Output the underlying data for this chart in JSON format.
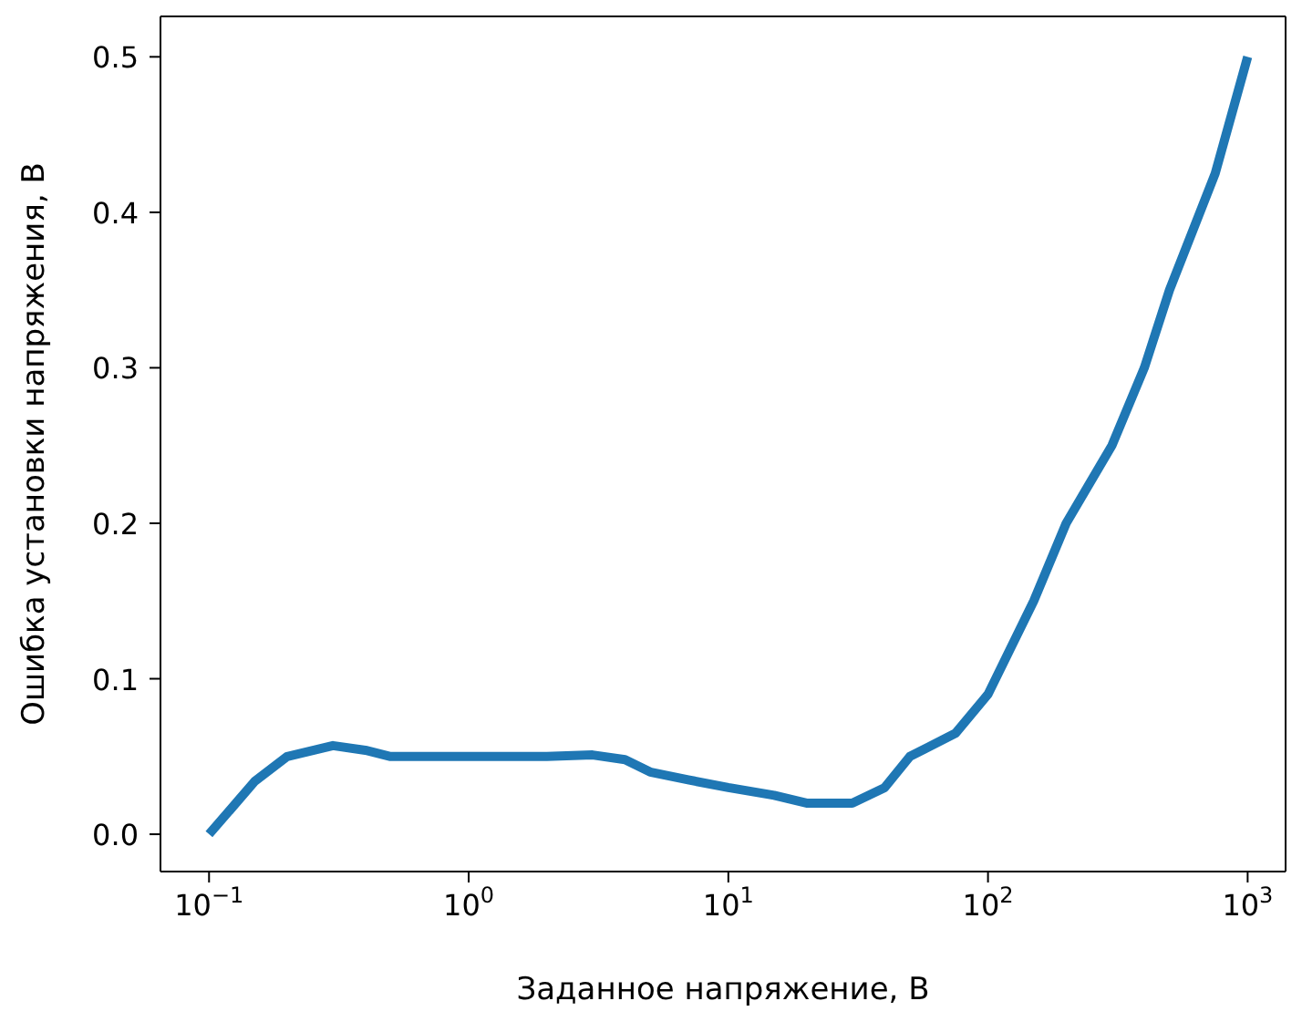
{
  "chart_data": {
    "type": "line",
    "xlabel": "Заданное напряжение, В",
    "ylabel": "Ошибка установки напряжения, В",
    "log": "x",
    "x": [
      0.1,
      0.15,
      0.2,
      0.3,
      0.4,
      0.5,
      1,
      2,
      3,
      4,
      5,
      7,
      10,
      15,
      20,
      30,
      40,
      50,
      75,
      100,
      150,
      200,
      300,
      400,
      500,
      750,
      1000
    ],
    "series": [
      {
        "color": "#1f77b4",
        "values": [
          0,
          0.034,
          0.05,
          0.057,
          0.054,
          0.05,
          0.05,
          0.05,
          0.051,
          0.048,
          0.04,
          0.035,
          0.03,
          0.025,
          0.02,
          0.02,
          0.03,
          0.05,
          0.065,
          0.09,
          0.15,
          0.2,
          0.25,
          0.3,
          0.35,
          0.425,
          0.5
        ]
      }
    ],
    "xlim": [
      0.065,
      1400
    ],
    "ylim": [
      -0.024,
      0.526
    ],
    "xticks": [
      {
        "value": 0.1,
        "label": "10$^{−1}$"
      },
      {
        "value": 1,
        "label": "10$^{0}$"
      },
      {
        "value": 10,
        "label": "10$^{1}$"
      },
      {
        "value": 100,
        "label": "10$^{2}$"
      },
      {
        "value": 1000,
        "label": "10$^{3}$"
      }
    ],
    "yticks": [
      {
        "value": 0,
        "label": "0.0"
      },
      {
        "value": 0.1,
        "label": "0.1"
      },
      {
        "value": 0.2,
        "label": "0.2"
      },
      {
        "value": 0.3,
        "label": "0.3"
      },
      {
        "value": 0.4,
        "label": "0.4"
      },
      {
        "value": 0.5,
        "label": "0.5"
      }
    ],
    "grid": false,
    "legend": false,
    "marker": "none",
    "line_style": "solid"
  }
}
